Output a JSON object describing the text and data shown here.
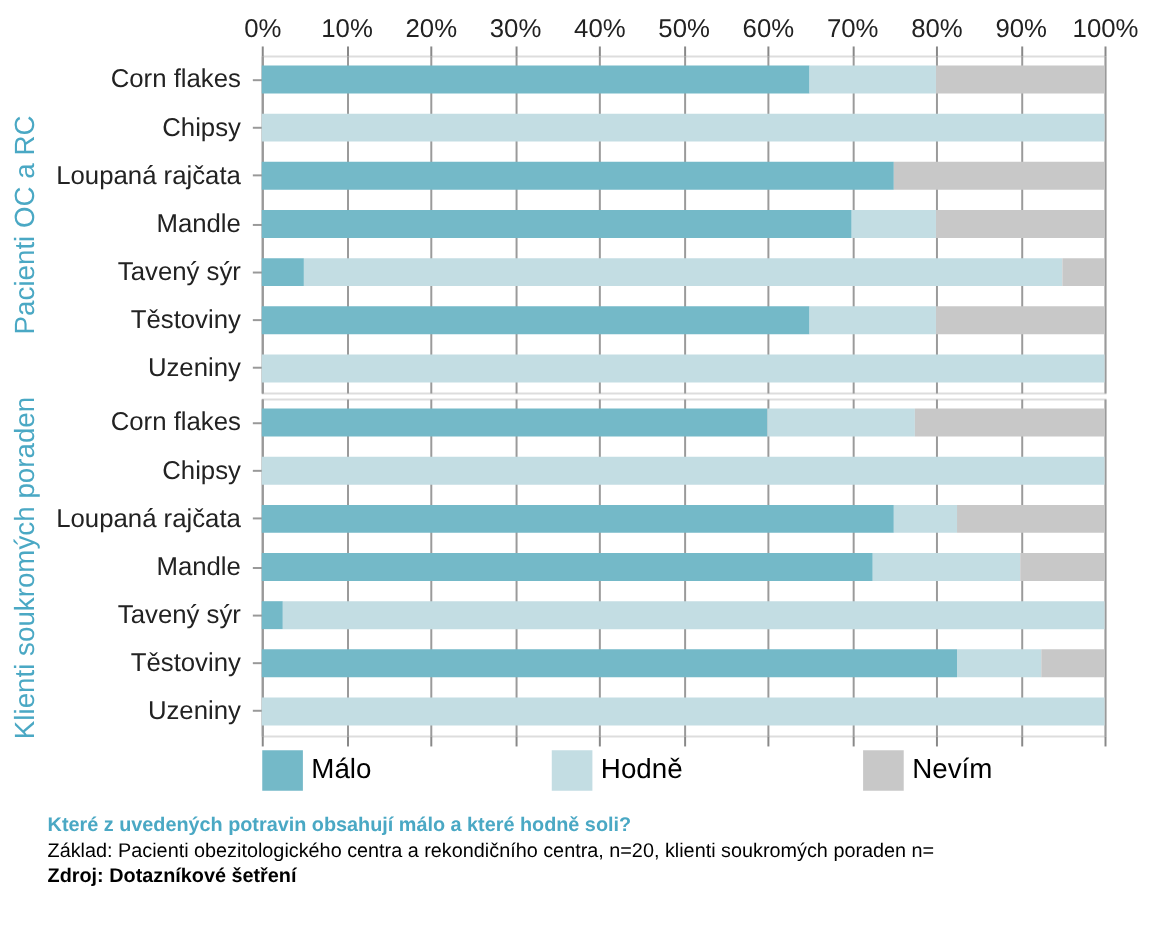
{
  "chart_data": [
    {
      "type": "bar",
      "orientation": "horizontal",
      "stacked": true,
      "ylabel": "Pacienti OC a RC",
      "categories": [
        "Corn flakes",
        "Chipsy",
        "Loupaná rajčata",
        "Mandle",
        "Tavený sýr",
        "Těstoviny",
        "Uzeniny"
      ],
      "series": [
        {
          "name": "Málo",
          "color": "#74b9c8",
          "values": [
            65,
            0,
            75,
            70,
            5,
            65,
            0
          ]
        },
        {
          "name": "Hodně",
          "color": "#c3dde3",
          "values": [
            15,
            100,
            0,
            10,
            90,
            15,
            100
          ]
        },
        {
          "name": "Nevím",
          "color": "#c8c8c8",
          "values": [
            20,
            0,
            25,
            20,
            5,
            20,
            0
          ]
        }
      ],
      "xlim": [
        0,
        100
      ],
      "xticks": [
        {
          "value": 0,
          "label": "0%"
        },
        {
          "value": 10,
          "label": "10%"
        },
        {
          "value": 20,
          "label": "20%"
        },
        {
          "value": 30,
          "label": "30%"
        },
        {
          "value": 40,
          "label": "40%"
        },
        {
          "value": 50,
          "label": "50%"
        },
        {
          "value": 60,
          "label": "60%"
        },
        {
          "value": 70,
          "label": "70%"
        },
        {
          "value": 80,
          "label": "80%"
        },
        {
          "value": 90,
          "label": "90%"
        },
        {
          "value": 100,
          "label": "100%"
        }
      ],
      "grid": "x",
      "legend": "bottom"
    },
    {
      "type": "bar",
      "orientation": "horizontal",
      "stacked": true,
      "ylabel": "Klienti soukromých poraden",
      "categories": [
        "Corn flakes",
        "Chipsy",
        "Loupaná rajčata",
        "Mandle",
        "Tavený sýr",
        "Těstoviny",
        "Uzeniny"
      ],
      "series": [
        {
          "name": "Málo",
          "color": "#74b9c8",
          "values": [
            60,
            0,
            75,
            72.5,
            2.5,
            82.5,
            0
          ]
        },
        {
          "name": "Hodně",
          "color": "#c3dde3",
          "values": [
            17.5,
            100,
            7.5,
            17.5,
            97.5,
            10,
            100
          ]
        },
        {
          "name": "Nevím",
          "color": "#c8c8c8",
          "values": [
            22.5,
            0,
            17.5,
            10,
            0,
            7.5,
            0
          ]
        }
      ],
      "xlim": [
        0,
        100
      ],
      "xticks": [
        0,
        10,
        20,
        30,
        40,
        50,
        60,
        70,
        80,
        90,
        100
      ],
      "grid": "x",
      "tick_labels": "y",
      "legend": "bottom",
      "annotations": [
        "Které z uvedených potravin obsahují málo a které hodně soli?",
        "Základ: Pacienti obezitologického centra a rekondičního centra, n=20, klienti soukromých poraden n=",
        "Zdroj: Dotazníkové šetření"
      ]
    }
  ]
}
